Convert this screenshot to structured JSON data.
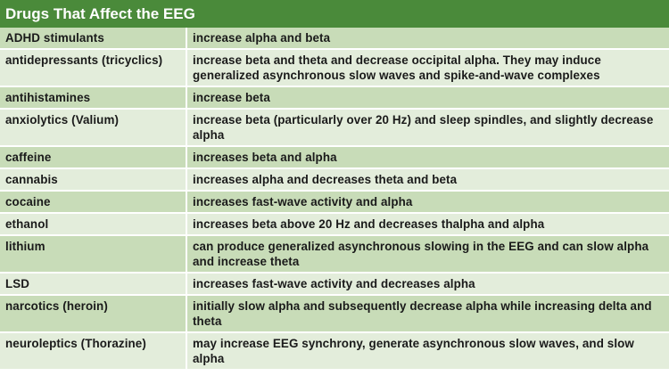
{
  "title": "Drugs That Affect the EEG",
  "colors": {
    "header_bg": "#4a8a3a",
    "row_odd": "#c8dcb8",
    "row_even": "#e3eddb"
  },
  "rows": [
    {
      "drug": "ADHD stimulants",
      "effect": "increase alpha and beta"
    },
    {
      "drug": "antidepressants (tricyclics)",
      "effect": "increase beta and theta and decrease occipital alpha. They may induce generalized asynchronous slow waves and spike-and-wave complexes"
    },
    {
      "drug": "antihistamines",
      "effect": "increase beta"
    },
    {
      "drug": "anxiolytics (Valium)",
      "effect": "increase beta (particularly over 20 Hz) and sleep spindles, and slightly decrease alpha"
    },
    {
      "drug": "caffeine",
      "effect": "increases beta and alpha"
    },
    {
      "drug": "cannabis",
      "effect": "increases alpha and decreases theta and beta"
    },
    {
      "drug": "cocaine",
      "effect": "increases fast-wave activity and alpha"
    },
    {
      "drug": "ethanol",
      "effect": "increases beta above 20 Hz and decreases thalpha and alpha"
    },
    {
      "drug": "lithium",
      "effect": "can produce generalized asynchronous slowing in the EEG and can slow alpha and increase theta"
    },
    {
      "drug": "LSD",
      "effect": "increases fast-wave activity and decreases alpha"
    },
    {
      "drug": "narcotics (heroin)",
      "effect": "initially slow alpha and subsequently decrease alpha while increasing delta and theta"
    },
    {
      "drug": "neuroleptics (Thorazine)",
      "effect": "may increase EEG synchrony, generate asynchronous slow waves, and slow alpha"
    }
  ]
}
